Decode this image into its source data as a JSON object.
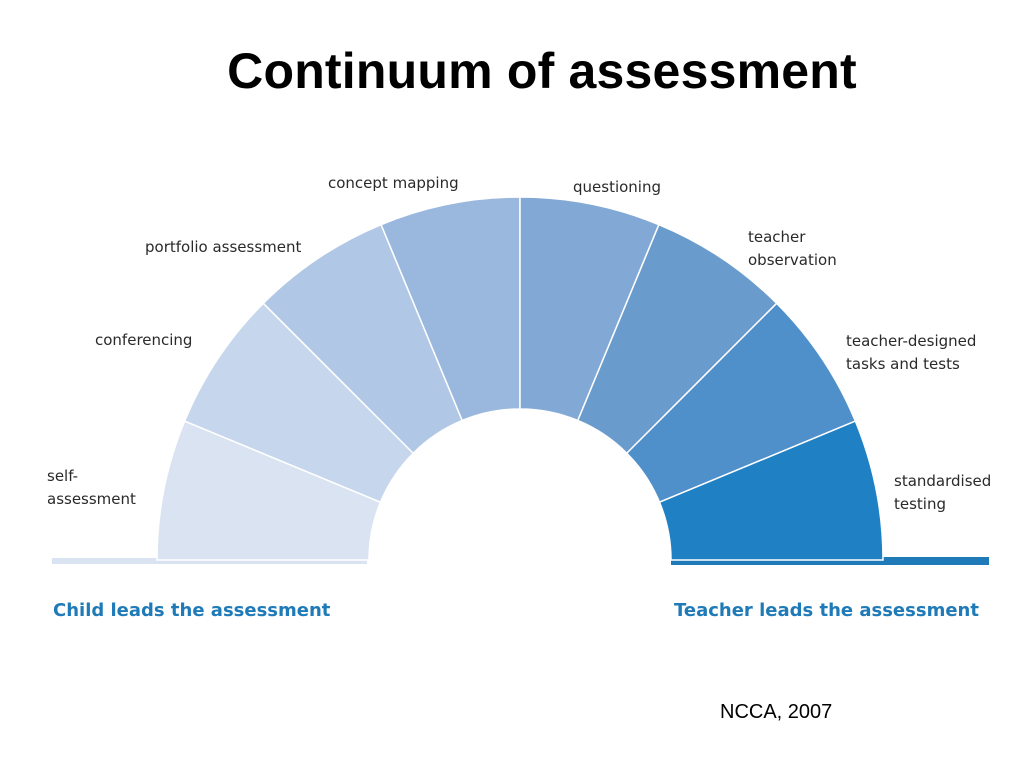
{
  "slide": {
    "title": "Continuum of assessment",
    "citation": "NCCA, 2007"
  },
  "diagram": {
    "segments": [
      {
        "label": "self-\nassessment",
        "color": "#d9e3f2"
      },
      {
        "label": "conferencing",
        "color": "#c6d6ec"
      },
      {
        "label": "portfolio assessment",
        "color": "#b0c7e5"
      },
      {
        "label": "concept mapping",
        "color": "#9ab8de"
      },
      {
        "label": "questioning",
        "color": "#82a9d6"
      },
      {
        "label": "teacher\nobservation",
        "color": "#6a9bcd"
      },
      {
        "label": "teacher-designed\ntasks and tests",
        "color": "#4f8fca"
      },
      {
        "label": "standardised\ntesting",
        "color": "#1f80c3"
      }
    ],
    "left_end": {
      "label": "Child leads the assessment",
      "color": "#d9e3f2"
    },
    "right_end": {
      "label": "Teacher leads the assessment",
      "color": "#1f7ab8"
    }
  }
}
